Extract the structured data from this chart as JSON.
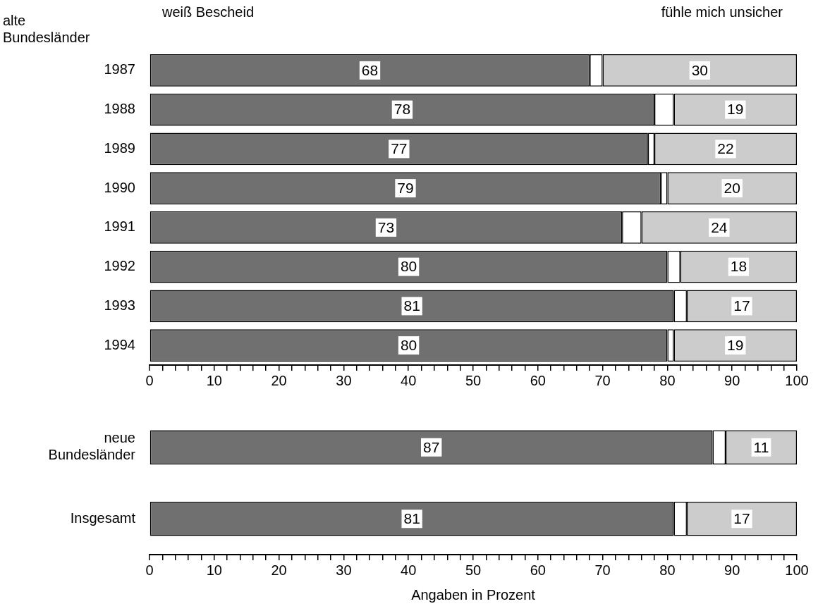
{
  "chart_data": [
    {
      "type": "bar",
      "orientation": "horizontal",
      "stacked": true,
      "ylabel": "alte Bundesländer",
      "categories": [
        "1987",
        "1988",
        "1989",
        "1990",
        "1991",
        "1992",
        "1993",
        "1994"
      ],
      "series": [
        {
          "name": "weiß Bescheid",
          "color": "#707070",
          "values": [
            68,
            78,
            77,
            79,
            73,
            80,
            81,
            80
          ],
          "value_labels": [
            "68",
            "78",
            "77",
            "79",
            "73",
            "80",
            "81",
            "80"
          ]
        },
        {
          "color": "#ffffff",
          "values": [
            2,
            3,
            1,
            1,
            3,
            2,
            2,
            1
          ],
          "value_labels": [
            null,
            null,
            null,
            null,
            null,
            null,
            null,
            null
          ]
        },
        {
          "name": "fühle mich unsicher",
          "color": "#cccccc",
          "values": [
            30,
            19,
            22,
            20,
            24,
            18,
            17,
            19
          ],
          "value_labels": [
            "30",
            "19",
            "22",
            "20",
            "24",
            "18",
            "17",
            "19"
          ]
        }
      ],
      "xlim": [
        0,
        100
      ],
      "xticks": [
        0,
        {
          "value": 2,
          "label": null
        },
        {
          "value": 4,
          "label": null
        },
        {
          "value": 6,
          "label": null
        },
        {
          "value": 8,
          "label": null
        },
        10,
        {
          "value": 12,
          "label": null
        },
        {
          "value": 14,
          "label": null
        },
        {
          "value": 16,
          "label": null
        },
        {
          "value": 18,
          "label": null
        },
        20,
        {
          "value": 22,
          "label": null
        },
        {
          "value": 24,
          "label": null
        },
        {
          "value": 26,
          "label": null
        },
        {
          "value": 28,
          "label": null
        },
        30,
        {
          "value": 32,
          "label": null
        },
        {
          "value": 34,
          "label": null
        },
        {
          "value": 36,
          "label": null
        },
        {
          "value": 38,
          "label": null
        },
        40,
        {
          "value": 42,
          "label": null
        },
        {
          "value": 44,
          "label": null
        },
        {
          "value": 46,
          "label": null
        },
        {
          "value": 48,
          "label": null
        },
        50,
        {
          "value": 52,
          "label": null
        },
        {
          "value": 54,
          "label": null
        },
        {
          "value": 56,
          "label": null
        },
        {
          "value": 58,
          "label": null
        },
        60,
        {
          "value": 62,
          "label": null
        },
        {
          "value": 64,
          "label": null
        },
        {
          "value": 66,
          "label": null
        },
        {
          "value": 68,
          "label": null
        },
        70,
        {
          "value": 72,
          "label": null
        },
        {
          "value": 74,
          "label": null
        },
        {
          "value": 76,
          "label": null
        },
        {
          "value": 78,
          "label": null
        },
        80,
        {
          "value": 82,
          "label": null
        },
        {
          "value": 84,
          "label": null
        },
        {
          "value": 86,
          "label": null
        },
        {
          "value": 88,
          "label": null
        },
        90,
        {
          "value": 92,
          "label": null
        },
        {
          "value": 94,
          "label": null
        },
        {
          "value": 96,
          "label": null
        },
        {
          "value": 98,
          "label": null
        },
        100
      ],
      "grid": false
    },
    {
      "type": "bar",
      "orientation": "horizontal",
      "stacked": true,
      "xlabel": "Angaben in Prozent",
      "categories": [
        "neue Bundesländer",
        "Insgesamt"
      ],
      "series": [
        {
          "color": "#707070",
          "values": [
            87,
            81
          ],
          "value_labels": [
            "87",
            "81"
          ]
        },
        {
          "color": "#ffffff",
          "values": [
            2,
            2
          ],
          "value_labels": [
            null,
            null
          ]
        },
        {
          "color": "#cccccc",
          "values": [
            11,
            17
          ],
          "value_labels": [
            "11",
            "17"
          ]
        }
      ],
      "xlim": [
        0,
        100
      ],
      "xticks": [
        0,
        {
          "value": 2,
          "label": null
        },
        {
          "value": 4,
          "label": null
        },
        {
          "value": 6,
          "label": null
        },
        {
          "value": 8,
          "label": null
        },
        10,
        {
          "value": 12,
          "label": null
        },
        {
          "value": 14,
          "label": null
        },
        {
          "value": 16,
          "label": null
        },
        {
          "value": 18,
          "label": null
        },
        20,
        {
          "value": 22,
          "label": null
        },
        {
          "value": 24,
          "label": null
        },
        {
          "value": 26,
          "label": null
        },
        {
          "value": 28,
          "label": null
        },
        30,
        {
          "value": 32,
          "label": null
        },
        {
          "value": 34,
          "label": null
        },
        {
          "value": 36,
          "label": null
        },
        {
          "value": 38,
          "label": null
        },
        40,
        {
          "value": 42,
          "label": null
        },
        {
          "value": 44,
          "label": null
        },
        {
          "value": 46,
          "label": null
        },
        {
          "value": 48,
          "label": null
        },
        50,
        {
          "value": 52,
          "label": null
        },
        {
          "value": 54,
          "label": null
        },
        {
          "value": 56,
          "label": null
        },
        {
          "value": 58,
          "label": null
        },
        60,
        {
          "value": 62,
          "label": null
        },
        {
          "value": 64,
          "label": null
        },
        {
          "value": 66,
          "label": null
        },
        {
          "value": 68,
          "label": null
        },
        70,
        {
          "value": 72,
          "label": null
        },
        {
          "value": 74,
          "label": null
        },
        {
          "value": 76,
          "label": null
        },
        {
          "value": 78,
          "label": null
        },
        80,
        {
          "value": 82,
          "label": null
        },
        {
          "value": 84,
          "label": null
        },
        {
          "value": 86,
          "label": null
        },
        {
          "value": 88,
          "label": null
        },
        90,
        {
          "value": 92,
          "label": null
        },
        {
          "value": 94,
          "label": null
        },
        {
          "value": 96,
          "label": null
        },
        {
          "value": 98,
          "label": null
        },
        100
      ],
      "grid": false
    }
  ]
}
